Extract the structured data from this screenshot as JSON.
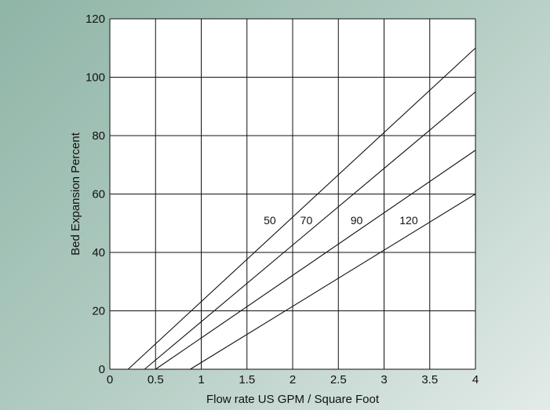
{
  "chart_data": {
    "type": "line",
    "title": "",
    "xlabel": "Flow rate US GPM / Square Foot",
    "ylabel": "Bed Expansion Percent",
    "xlim": [
      0,
      4
    ],
    "ylim": [
      0,
      120
    ],
    "x_ticks": [
      0,
      0.5,
      1,
      1.5,
      2,
      2.5,
      3,
      3.5,
      4
    ],
    "x_tick_labels": [
      "0",
      "0.5",
      "1",
      "1.5",
      "2",
      "2.5",
      "3",
      "3.5",
      "4"
    ],
    "y_ticks": [
      0,
      20,
      40,
      60,
      80,
      100,
      120
    ],
    "y_tick_labels": [
      "0",
      "20",
      "40",
      "60",
      "80",
      "100",
      "120"
    ],
    "grid": true,
    "series": [
      {
        "name": "50",
        "x": [
          0.2,
          4.0
        ],
        "y": [
          0,
          110
        ],
        "label_at": [
          1.75,
          51
        ]
      },
      {
        "name": "70",
        "x": [
          0.38,
          4.0
        ],
        "y": [
          0,
          95
        ],
        "label_at": [
          2.15,
          51
        ]
      },
      {
        "name": "90",
        "x": [
          0.5,
          4.0
        ],
        "y": [
          0,
          75
        ],
        "label_at": [
          2.7,
          51
        ]
      },
      {
        "name": "120",
        "x": [
          0.88,
          4.0
        ],
        "y": [
          0,
          60
        ],
        "label_at": [
          3.27,
          51
        ]
      }
    ]
  }
}
